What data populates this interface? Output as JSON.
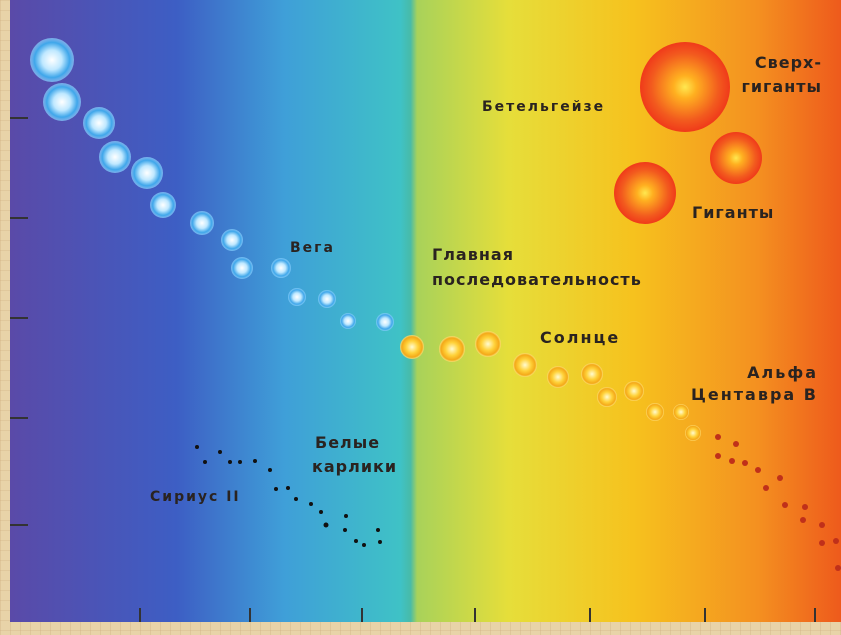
{
  "labels": {
    "supergiants": [
      "Сверх-",
      "гиганты"
    ],
    "betelgeuse": "Бетельгейзе",
    "giants": "Гиганты",
    "vega": "Вега",
    "main_sequence": [
      "Главная",
      "последовательность"
    ],
    "sun": "Солнце",
    "alpha_centauri": [
      "Альфа",
      "Центавра B"
    ],
    "white_dwarfs": [
      "Белые",
      "карлики"
    ],
    "sirius": "Сириус II"
  }
}
